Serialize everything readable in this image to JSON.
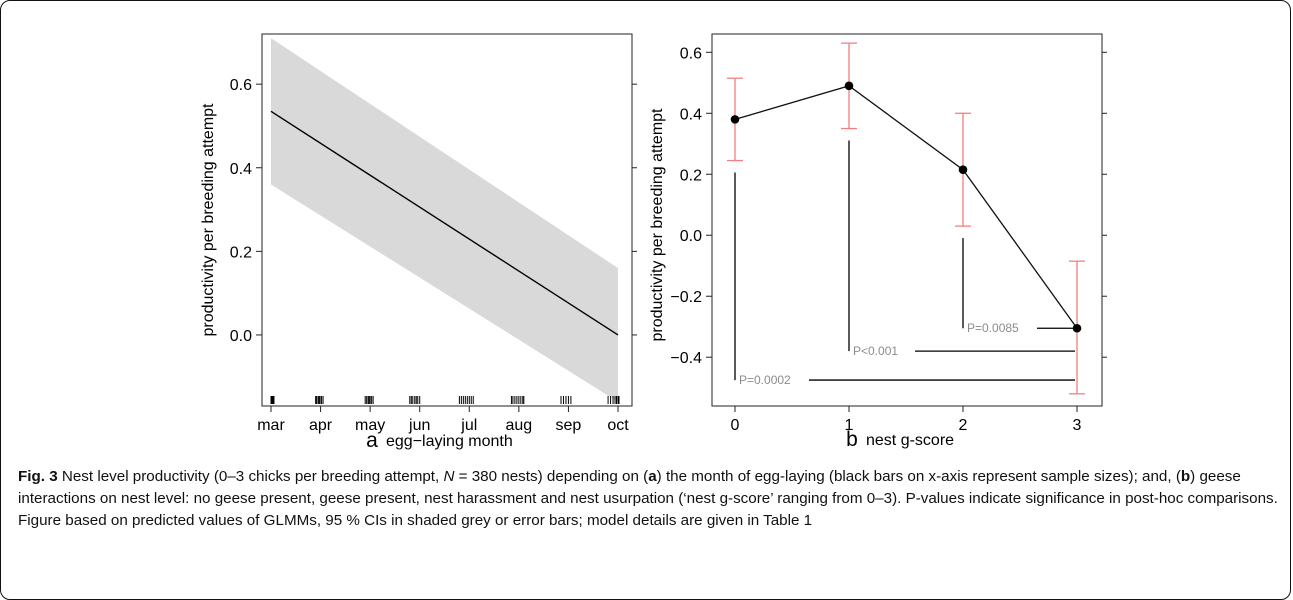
{
  "chart_data": [
    {
      "panel_label": "a",
      "type": "line",
      "xlabel": "egg−laying month",
      "ylabel": "productivity per breeding attempt",
      "x_categories": [
        "mar",
        "apr",
        "may",
        "jun",
        "jul",
        "aug",
        "sep",
        "oct"
      ],
      "y_ticks": [
        "0.0",
        "0.2",
        "0.4",
        "0.6"
      ],
      "ylim": [
        -0.17,
        0.72
      ],
      "line": {
        "x": [
          "mar",
          "oct"
        ],
        "y": [
          0.535,
          0.0
        ]
      },
      "ci_band": {
        "x": [
          "mar",
          "oct"
        ],
        "lower": [
          0.36,
          -0.16
        ],
        "upper": [
          0.71,
          0.16
        ]
      },
      "rug_month_positions": [
        0.0,
        0.02,
        0.04,
        0.06,
        0.9,
        0.92,
        0.95,
        0.97,
        0.99,
        1.02,
        1.05,
        1.9,
        1.93,
        1.96,
        1.98,
        2.0,
        2.03,
        2.06,
        2.8,
        2.83,
        2.86,
        2.9,
        2.93,
        2.96,
        3.0,
        3.8,
        3.84,
        3.88,
        3.92,
        3.96,
        4.0,
        4.04,
        4.08,
        4.85,
        4.88,
        4.92,
        4.96,
        5.0,
        5.04,
        5.08,
        5.1,
        5.85,
        5.9,
        5.95,
        6.0,
        6.05,
        6.8,
        6.85,
        6.9,
        6.94,
        6.97,
        7.0,
        7.02
      ],
      "fill_color": "#d9d9d9",
      "line_color": "#000000"
    },
    {
      "panel_label": "b",
      "type": "line",
      "xlabel": "nest g-score",
      "ylabel": "productivity per breeding attempt",
      "x": [
        0,
        1,
        2,
        3
      ],
      "y": [
        0.38,
        0.49,
        0.215,
        -0.305
      ],
      "ci_lower": [
        0.245,
        0.35,
        0.03,
        -0.52
      ],
      "ci_upper": [
        0.515,
        0.63,
        0.4,
        -0.085
      ],
      "y_ticks": [
        "−0.4",
        "−0.2",
        "0.0",
        "0.2",
        "0.4",
        "0.6"
      ],
      "x_ticks": [
        "0",
        "1",
        "2",
        "3"
      ],
      "ylim": [
        -0.56,
        0.66
      ],
      "comparisons": [
        {
          "from": 0,
          "to": 3,
          "label": "P=0.0002",
          "y": -0.475
        },
        {
          "from": 1,
          "to": 3,
          "label": "P<0.001",
          "y": -0.38
        },
        {
          "from": 2,
          "to": 3,
          "label": "P=0.0085",
          "y": -0.305
        }
      ],
      "errorbar_color": "#f08080",
      "point_color": "#000000",
      "pvalue_text_color": "#8c8c8c"
    }
  ],
  "caption": {
    "fig_label": "Fig. 3",
    "text_1": " Nest level productivity (0–3 chicks per breeding attempt, ",
    "n_symbol": "N",
    "text_2": " = 380 nests) depending on (",
    "a_bold": "a",
    "text_3": ") the month of egg-laying (black bars on x-axis represent sample sizes); and, (",
    "b_bold": "b",
    "text_4": ") geese interactions on nest level: no geese present, geese present, nest harassment and nest usurpation (‘nest g-score’ ranging from 0–3). P-values indicate significance in post-hoc comparisons. Figure based on predicted values of GLMMs, 95 % CIs in shaded grey or error bars; model details are given in Table 1"
  }
}
